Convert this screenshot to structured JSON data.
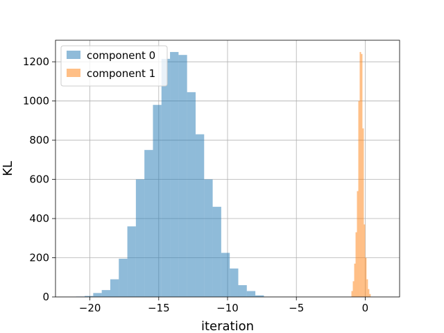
{
  "chart_data": {
    "type": "bar",
    "title": "",
    "xlabel": "iteration",
    "ylabel": "KL",
    "xlim": [
      -22.5,
      2.5
    ],
    "ylim": [
      0,
      1310
    ],
    "xticks": [
      -20,
      -15,
      -10,
      -5,
      0
    ],
    "yticks": [
      0,
      200,
      400,
      600,
      800,
      1000,
      1200
    ],
    "xtick_labels": [
      "−20",
      "−15",
      "−10",
      "−5",
      "0"
    ],
    "ytick_labels": [
      "0",
      "200",
      "400",
      "600",
      "800",
      "1000",
      "1200"
    ],
    "grid": true,
    "legend_position": "top-left",
    "series": [
      {
        "name": "component 0",
        "color": "#1f77b4",
        "opacity": 0.5,
        "bin_start": -21.0,
        "bin_width": 0.62,
        "values": [
          2,
          5,
          20,
          35,
          90,
          195,
          360,
          600,
          750,
          980,
          1215,
          1250,
          1235,
          1045,
          830,
          600,
          460,
          225,
          145,
          60,
          30,
          8
        ]
      },
      {
        "name": "component 1",
        "color": "#ff7f0e",
        "opacity": 0.5,
        "bin_start": -1.0,
        "bin_width": 0.1,
        "values": [
          30,
          80,
          170,
          330,
          540,
          1000,
          1250,
          1240,
          860,
          370,
          200,
          90,
          40,
          15
        ]
      }
    ]
  }
}
